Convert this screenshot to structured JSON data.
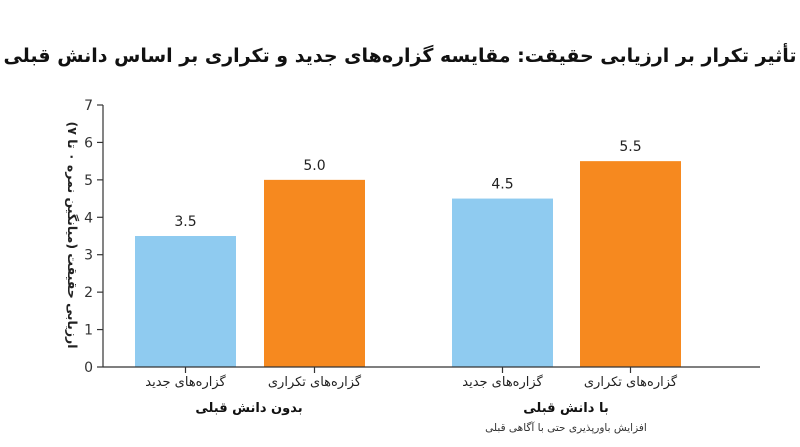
{
  "colors": {
    "new_statements": "#8fcbf0",
    "repeated_statements": "#f6891f"
  },
  "chart_data": {
    "type": "bar",
    "title": "تأثیر تکرار بر ارزیابی حقیقت: مقایسه گزاره‌های جدید و تکراری بر اساس دانش قبلی",
    "ylabel": "ارزیابی حقیقت (میانگین نمره ۰ تا ۷)",
    "xlabel": "",
    "ylim": [
      0,
      7
    ],
    "yticks": [
      0,
      1,
      2,
      3,
      4,
      5,
      6,
      7
    ],
    "groups": [
      {
        "label": "بدون دانش قبلی",
        "sublabel": "",
        "bars": [
          {
            "category": "گزاره‌های جدید",
            "value": 3.5,
            "value_label": "3.5",
            "series": "new"
          },
          {
            "category": "گزاره‌های تکراری",
            "value": 5.0,
            "value_label": "5.0",
            "series": "repeated"
          }
        ]
      },
      {
        "label": "با دانش قبلی",
        "sublabel": "افزایش باورپذیری حتی با آگاهی قبلی",
        "bars": [
          {
            "category": "گزاره‌های جدید",
            "value": 4.5,
            "value_label": "4.5",
            "series": "new"
          },
          {
            "category": "گزاره‌های تکراری",
            "value": 5.5,
            "value_label": "5.5",
            "series": "repeated"
          }
        ]
      }
    ]
  }
}
